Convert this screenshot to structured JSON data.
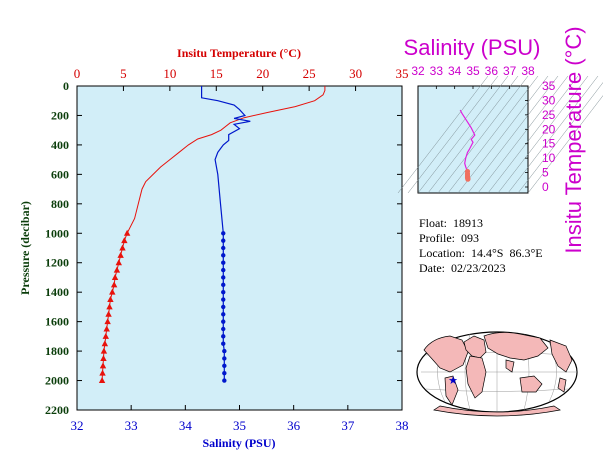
{
  "info": {
    "float_line": "Float:  18913",
    "profile_line": "Profile:  093",
    "location_line": "Location:  14.4°S  86.3°E",
    "date_line": "Date:  02/23/2023"
  },
  "colors": {
    "panel_bg": "#d2eef8",
    "temperature": "#e8120c",
    "salinity": "#0018cc",
    "mini_axis": "#cc00cc",
    "mini_profile": "#e020e0",
    "map_land": "#f4b8b8",
    "map_marker": "#0000cc"
  },
  "chart_data": [
    {
      "type": "line",
      "title": "",
      "top_axis_label": "Insitu Temperature (°C)",
      "bottom_axis_label": "Salinity (PSU)",
      "left_axis_label": "Pressure (decibar)",
      "temperature_axis": {
        "range": [
          0,
          35
        ],
        "ticks": [
          "0",
          "5",
          "10",
          "15",
          "20",
          "25",
          "30",
          "35"
        ]
      },
      "salinity_axis": {
        "range": [
          32,
          38
        ],
        "ticks": [
          "32",
          "33",
          "34",
          "35",
          "36",
          "37",
          "38"
        ]
      },
      "pressure_axis": {
        "range": [
          0,
          2200
        ],
        "inverted": true,
        "ticks": [
          "0",
          "200",
          "400",
          "600",
          "800",
          "1000",
          "1200",
          "1400",
          "1600",
          "1800",
          "2000",
          "2200"
        ]
      },
      "series": [
        {
          "variable": "temperature",
          "marker_below_pressure": 1000,
          "marker": "triangle",
          "points": [
            [
              26.7,
              0
            ],
            [
              26.7,
              30
            ],
            [
              26.5,
              60
            ],
            [
              25.6,
              100
            ],
            [
              23.5,
              140
            ],
            [
              20.5,
              180
            ],
            [
              18.0,
              215
            ],
            [
              16.5,
              250
            ],
            [
              15.5,
              300
            ],
            [
              14.5,
              330
            ],
            [
              13.0,
              360
            ],
            [
              12.0,
              400
            ],
            [
              11.0,
              450
            ],
            [
              10.0,
              500
            ],
            [
              9.0,
              550
            ],
            [
              8.2,
              600
            ],
            [
              7.4,
              650
            ],
            [
              7.0,
              700
            ],
            [
              6.6,
              800
            ],
            [
              6.2,
              900
            ],
            [
              5.4,
              1000
            ],
            [
              5.1,
              1050
            ],
            [
              4.9,
              1100
            ],
            [
              4.7,
              1150
            ],
            [
              4.5,
              1200
            ],
            [
              4.3,
              1250
            ],
            [
              4.1,
              1300
            ],
            [
              4.0,
              1350
            ],
            [
              3.8,
              1400
            ],
            [
              3.6,
              1450
            ],
            [
              3.5,
              1500
            ],
            [
              3.4,
              1550
            ],
            [
              3.3,
              1600
            ],
            [
              3.2,
              1650
            ],
            [
              3.1,
              1700
            ],
            [
              3.0,
              1750
            ],
            [
              2.9,
              1800
            ],
            [
              2.85,
              1850
            ],
            [
              2.8,
              1900
            ],
            [
              2.75,
              1950
            ],
            [
              2.7,
              2000
            ]
          ]
        },
        {
          "variable": "salinity",
          "marker_below_pressure": 1000,
          "marker": "circle",
          "points": [
            [
              34.3,
              0
            ],
            [
              34.3,
              50
            ],
            [
              34.3,
              80
            ],
            [
              34.6,
              100
            ],
            [
              34.9,
              130
            ],
            [
              35.0,
              160
            ],
            [
              35.1,
              200
            ],
            [
              34.9,
              220
            ],
            [
              35.2,
              240
            ],
            [
              34.9,
              260
            ],
            [
              35.0,
              290
            ],
            [
              34.8,
              330
            ],
            [
              34.8,
              370
            ],
            [
              34.7,
              400
            ],
            [
              34.6,
              450
            ],
            [
              34.55,
              500
            ],
            [
              34.6,
              600
            ],
            [
              34.65,
              800
            ],
            [
              34.7,
              1000
            ],
            [
              34.7,
              1050
            ],
            [
              34.7,
              1100
            ],
            [
              34.7,
              1150
            ],
            [
              34.7,
              1200
            ],
            [
              34.7,
              1250
            ],
            [
              34.7,
              1300
            ],
            [
              34.7,
              1350
            ],
            [
              34.7,
              1400
            ],
            [
              34.7,
              1450
            ],
            [
              34.7,
              1500
            ],
            [
              34.7,
              1550
            ],
            [
              34.7,
              1600
            ],
            [
              34.7,
              1650
            ],
            [
              34.7,
              1700
            ],
            [
              34.7,
              1750
            ],
            [
              34.72,
              1800
            ],
            [
              34.72,
              1850
            ],
            [
              34.72,
              1900
            ],
            [
              34.72,
              1950
            ],
            [
              34.72,
              2000
            ]
          ]
        }
      ]
    },
    {
      "type": "scatter",
      "title": "Salinity (PSU)",
      "xlabel": "",
      "ylabel": "Insitu Temperature (°C)",
      "x_axis": {
        "range": [
          32,
          38
        ],
        "ticks": [
          "32",
          "33",
          "34",
          "35",
          "36",
          "37",
          "38"
        ]
      },
      "y_axis": {
        "range": [
          0,
          35
        ],
        "ticks": [
          "0",
          "5",
          "10",
          "15",
          "20",
          "25",
          "30",
          "35"
        ]
      },
      "background_contours": "density isopleths",
      "points": [
        [
          34.3,
          26.7
        ],
        [
          34.4,
          25.5
        ],
        [
          34.6,
          23.5
        ],
        [
          34.9,
          20.5
        ],
        [
          35.1,
          18.0
        ],
        [
          34.9,
          16.5
        ],
        [
          35.0,
          15.5
        ],
        [
          34.8,
          13.0
        ],
        [
          34.7,
          12.0
        ],
        [
          34.6,
          10.0
        ],
        [
          34.55,
          8.2
        ],
        [
          34.6,
          7.0
        ],
        [
          34.65,
          6.2
        ],
        [
          34.7,
          5.4
        ],
        [
          34.7,
          4.5
        ],
        [
          34.7,
          3.8
        ],
        [
          34.7,
          3.3
        ],
        [
          34.72,
          2.9
        ],
        [
          34.72,
          2.7
        ]
      ],
      "deep_points_from": 13
    }
  ]
}
